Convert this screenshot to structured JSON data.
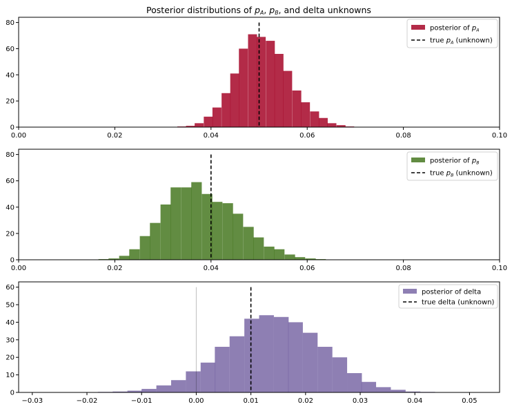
{
  "figure": {
    "title_parts": [
      {
        "t": "Posterior distributions of ",
        "i": false
      },
      {
        "t": "p",
        "i": true
      },
      {
        "t": "A",
        "sub": true
      },
      {
        "t": ", ",
        "i": false
      },
      {
        "t": "p",
        "i": true
      },
      {
        "t": "B",
        "sub": true
      },
      {
        "t": ", and delta unknowns",
        "i": false
      }
    ]
  },
  "chart_data": [
    {
      "type": "bar",
      "id": "pA",
      "color": "#a60628",
      "xlim": [
        0.0,
        0.1
      ],
      "ylim": [
        0,
        84
      ],
      "xticks": [
        0.0,
        0.02,
        0.04,
        0.06,
        0.08,
        0.1
      ],
      "xtick_labels": [
        "0.00",
        "0.02",
        "0.04",
        "0.06",
        "0.08",
        "0.10"
      ],
      "yticks": [
        0,
        20,
        40,
        60,
        80
      ],
      "ytick_labels": [
        "0",
        "20",
        "40",
        "60",
        "80"
      ],
      "bin_width": 0.00184,
      "bins_start": [
        0.033,
        0.0348,
        0.0366,
        0.0385,
        0.0403,
        0.0422,
        0.044,
        0.0458,
        0.0477,
        0.0495,
        0.0514,
        0.0532,
        0.055,
        0.0569,
        0.0587,
        0.0606,
        0.0624,
        0.0642,
        0.0661,
        0.0679
      ],
      "values": [
        0.5,
        1,
        3,
        8,
        15,
        26,
        41,
        60,
        71,
        69,
        66,
        56,
        43,
        28,
        19,
        12,
        7,
        3,
        1.5,
        0.5
      ],
      "true_value": 0.05,
      "legend": {
        "hist_label_parts": [
          {
            "t": "posterior of "
          },
          {
            "t": "p",
            "i": true
          },
          {
            "t": "A",
            "sub": true
          }
        ],
        "line_label_parts": [
          {
            "t": "true "
          },
          {
            "t": "p",
            "i": true
          },
          {
            "t": "A",
            "sub": true
          },
          {
            "t": " (unknown)"
          }
        ],
        "position": "upper right"
      }
    },
    {
      "type": "bar",
      "id": "pB",
      "color": "#467821",
      "xlim": [
        0.0,
        0.1
      ],
      "ylim": [
        0,
        84
      ],
      "xticks": [
        0.0,
        0.02,
        0.04,
        0.06,
        0.08,
        0.1
      ],
      "xtick_labels": [
        "0.00",
        "0.02",
        "0.04",
        "0.06",
        "0.08",
        "0.10"
      ],
      "yticks": [
        0,
        20,
        40,
        60,
        80
      ],
      "ytick_labels": [
        "0",
        "20",
        "40",
        "60",
        "80"
      ],
      "bin_width": 0.00215,
      "bins_start": [
        0.0166,
        0.0187,
        0.0209,
        0.023,
        0.0252,
        0.0273,
        0.0295,
        0.0316,
        0.0338,
        0.0359,
        0.0381,
        0.0402,
        0.0424,
        0.0445,
        0.0467,
        0.0488,
        0.051,
        0.0531,
        0.0553,
        0.0574,
        0.0596,
        0.0617
      ],
      "values": [
        0.5,
        1,
        3,
        8,
        18,
        28,
        42,
        55,
        55,
        59,
        50,
        44,
        43,
        35,
        25,
        17,
        10,
        8,
        4,
        2,
        1,
        0.5
      ],
      "true_value": 0.04,
      "legend": {
        "hist_label_parts": [
          {
            "t": "posterior of "
          },
          {
            "t": "p",
            "i": true
          },
          {
            "t": "B",
            "sub": true
          }
        ],
        "line_label_parts": [
          {
            "t": "true "
          },
          {
            "t": "p",
            "i": true
          },
          {
            "t": "B",
            "sub": true
          },
          {
            "t": " (unknown)"
          }
        ],
        "position": "upper right"
      }
    },
    {
      "type": "bar",
      "id": "delta",
      "color": "#7a68a6",
      "xlim": [
        -0.0325,
        0.0555
      ],
      "ylim": [
        0,
        63
      ],
      "xticks": [
        -0.03,
        -0.02,
        -0.01,
        0.0,
        0.01,
        0.02,
        0.03,
        0.04,
        0.05
      ],
      "xtick_labels": [
        "−0.03",
        "−0.02",
        "−0.01",
        "0.00",
        "0.01",
        "0.02",
        "0.03",
        "0.04",
        "0.05"
      ],
      "yticks": [
        0,
        10,
        20,
        30,
        40,
        50,
        60
      ],
      "ytick_labels": [
        "0",
        "10",
        "20",
        "30",
        "40",
        "50",
        "60"
      ],
      "bin_width": 0.00268,
      "bins_start": [
        -0.018,
        -0.0153,
        -0.0126,
        -0.01,
        -0.0073,
        -0.0046,
        -0.0019,
        0.0008,
        0.0034,
        0.0061,
        0.0088,
        0.0115,
        0.0142,
        0.0168,
        0.0195,
        0.0222,
        0.0249,
        0.0276,
        0.0302,
        0.0329,
        0.0356,
        0.0383,
        0.041
      ],
      "values": [
        0.3,
        0.5,
        1,
        2,
        4,
        7,
        12,
        17,
        26,
        32,
        42,
        44,
        43,
        40,
        34,
        26,
        20,
        11,
        6,
        3,
        1.5,
        0.5,
        0.3
      ],
      "true_value": 0.01,
      "zero_line": 0.0,
      "legend": {
        "hist_label_parts": [
          {
            "t": "posterior of delta"
          }
        ],
        "line_label_parts": [
          {
            "t": "true delta (unknown)"
          }
        ],
        "position": "upper right"
      }
    }
  ]
}
